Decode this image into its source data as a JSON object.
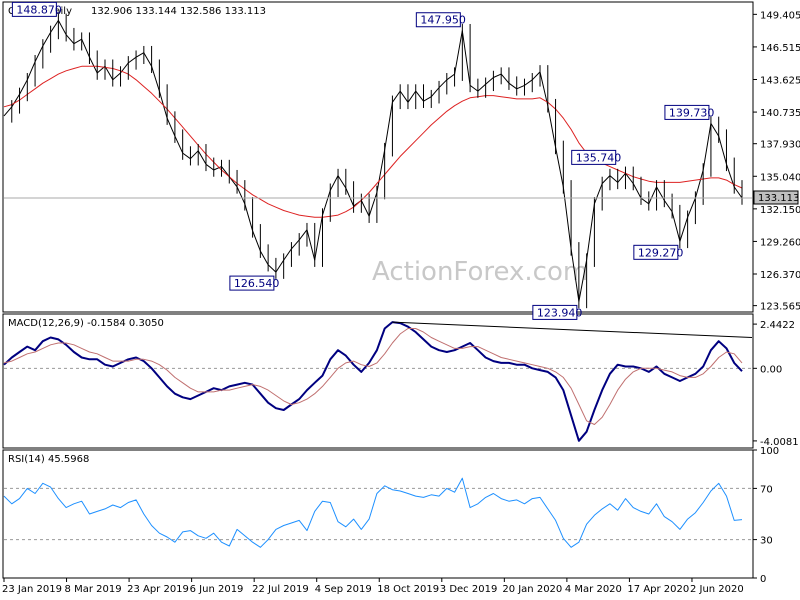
{
  "chart_data": [
    {
      "type": "line",
      "panel": "price",
      "header": "GBPJPY Daily",
      "ohlc_text": "132.906 133.144 132.586 133.113",
      "watermark": "ActionForex.com",
      "current_price_label": "133.113",
      "y_ticks": [
        "149.405",
        "146.515",
        "143.625",
        "140.735",
        "137.930",
        "135.040",
        "132.150",
        "129.260",
        "126.370",
        "123.565"
      ],
      "ylim": [
        123.0,
        150.5
      ],
      "x_ticks": [
        "23 Jan 2019",
        "8 Mar 2019",
        "23 Apr 2019",
        "6 Jun 2019",
        "22 Jul 2019",
        "4 Sep 2019",
        "18 Oct 2019",
        "3 Dec 2019",
        "20 Jan 2020",
        "4 Mar 2020",
        "17 Apr 2020",
        "2 Jun 2020"
      ],
      "annotations": [
        "148.870",
        "147.950",
        "126.540",
        "135.740",
        "139.730",
        "129.270",
        "123.940"
      ],
      "series": [
        {
          "name": "",
          "color": "#000000",
          "values": [
            140.4,
            141.2,
            142.3,
            143.6,
            145.2,
            146.6,
            147.8,
            148.87,
            147.6,
            146.8,
            147.2,
            145.6,
            144.2,
            144.8,
            143.6,
            144.2,
            145.1,
            145.6,
            146.0,
            144.8,
            142.6,
            140.2,
            138.6,
            137.1,
            136.6,
            137.3,
            136.1,
            135.6,
            135.9,
            135.0,
            134.1,
            132.6,
            130.2,
            128.4,
            127.2,
            126.54,
            127.6,
            128.6,
            129.4,
            130.3,
            127.6,
            131.6,
            133.8,
            135.1,
            134.0,
            132.4,
            132.9,
            131.5,
            133.6,
            137.4,
            141.6,
            142.6,
            141.6,
            142.6,
            141.7,
            142.1,
            142.9,
            143.6,
            144.1,
            147.95,
            143.1,
            142.6,
            143.2,
            143.8,
            144.1,
            143.3,
            142.8,
            143.1,
            143.6,
            144.3,
            141.3,
            137.6,
            134.1,
            128.6,
            123.94,
            127.6,
            132.6,
            134.4,
            135.1,
            134.5,
            135.3,
            134.4,
            133.1,
            132.6,
            134.1,
            132.9,
            131.9,
            129.27,
            131.4,
            133.1,
            135.6,
            139.73,
            138.6,
            136.1,
            134.1,
            133.113
          ]
        },
        {
          "name": "",
          "color": "#dd2222",
          "values": [
            141.2,
            141.4,
            141.8,
            142.3,
            142.8,
            143.3,
            143.7,
            144.1,
            144.4,
            144.6,
            144.8,
            144.8,
            144.8,
            144.7,
            144.6,
            144.4,
            144.1,
            143.6,
            143.0,
            142.4,
            141.7,
            141.0,
            140.2,
            139.4,
            138.6,
            137.8,
            137.0,
            136.3,
            135.6,
            135.0,
            134.4,
            133.9,
            133.4,
            133.0,
            132.6,
            132.3,
            132.0,
            131.8,
            131.6,
            131.5,
            131.4,
            131.4,
            131.5,
            131.6,
            131.9,
            132.3,
            132.9,
            133.6,
            134.4,
            135.2,
            136.0,
            136.8,
            137.5,
            138.2,
            138.9,
            139.6,
            140.2,
            140.8,
            141.3,
            141.7,
            142.0,
            142.1,
            142.2,
            142.2,
            142.1,
            142.0,
            141.9,
            141.9,
            141.9,
            142.0,
            141.6,
            141.0,
            140.2,
            139.2,
            138.0,
            137.1,
            136.6,
            136.2,
            135.9,
            135.6,
            135.3,
            135.0,
            134.8,
            134.6,
            134.5,
            134.5,
            134.5,
            134.5,
            134.6,
            134.7,
            134.8,
            134.9,
            134.9,
            134.7,
            134.3,
            134.0
          ]
        }
      ]
    },
    {
      "type": "line",
      "panel": "macd",
      "header": "MACD(12,26,9) -0.1584 0.3050",
      "y_ticks": [
        "2.4422",
        "0.00",
        "-4.0081"
      ],
      "ylim": [
        -4.4,
        3.0
      ],
      "series": [
        {
          "name": "",
          "color": "#000080",
          "values": [
            0.2,
            0.6,
            0.9,
            1.2,
            1.0,
            1.5,
            1.7,
            1.6,
            1.3,
            0.9,
            0.6,
            0.5,
            0.5,
            0.2,
            0.1,
            0.3,
            0.5,
            0.6,
            0.4,
            0.0,
            -0.5,
            -1.0,
            -1.4,
            -1.6,
            -1.7,
            -1.5,
            -1.3,
            -1.1,
            -1.2,
            -1.0,
            -0.9,
            -0.8,
            -0.9,
            -1.4,
            -1.9,
            -2.2,
            -2.3,
            -2.0,
            -1.7,
            -1.2,
            -0.8,
            -0.4,
            0.5,
            1.0,
            0.7,
            0.2,
            -0.2,
            0.3,
            1.0,
            2.2,
            2.55,
            2.5,
            2.3,
            2.0,
            1.6,
            1.2,
            1.0,
            0.9,
            1.0,
            1.2,
            1.4,
            1.0,
            0.6,
            0.4,
            0.3,
            0.3,
            0.2,
            0.2,
            0.0,
            -0.1,
            -0.2,
            -0.5,
            -1.2,
            -2.6,
            -4.0,
            -3.5,
            -2.3,
            -1.2,
            -0.3,
            0.2,
            0.1,
            0.1,
            0.0,
            -0.2,
            0.1,
            -0.3,
            -0.5,
            -0.7,
            -0.5,
            -0.3,
            0.1,
            1.0,
            1.5,
            1.1,
            0.3,
            -0.16
          ]
        },
        {
          "name": "",
          "color": "#c07070",
          "values": [
            0.3,
            0.4,
            0.6,
            0.8,
            0.9,
            1.1,
            1.3,
            1.4,
            1.4,
            1.3,
            1.1,
            0.9,
            0.8,
            0.6,
            0.4,
            0.4,
            0.4,
            0.5,
            0.5,
            0.4,
            0.2,
            -0.1,
            -0.5,
            -0.8,
            -1.1,
            -1.3,
            -1.3,
            -1.3,
            -1.2,
            -1.2,
            -1.1,
            -1.0,
            -0.9,
            -1.0,
            -1.2,
            -1.5,
            -1.8,
            -2.0,
            -1.9,
            -1.7,
            -1.4,
            -1.0,
            -0.5,
            0.0,
            0.3,
            0.4,
            0.2,
            0.1,
            0.3,
            0.8,
            1.4,
            1.9,
            2.2,
            2.2,
            2.0,
            1.7,
            1.5,
            1.3,
            1.1,
            1.1,
            1.2,
            1.2,
            1.0,
            0.8,
            0.6,
            0.5,
            0.4,
            0.3,
            0.2,
            0.1,
            0.0,
            -0.2,
            -0.5,
            -1.1,
            -2.0,
            -2.9,
            -3.1,
            -2.7,
            -2.0,
            -1.2,
            -0.6,
            -0.2,
            0.0,
            0.0,
            0.0,
            -0.1,
            -0.2,
            -0.4,
            -0.5,
            -0.5,
            -0.3,
            0.1,
            0.6,
            0.9,
            0.8,
            0.3
          ]
        }
      ]
    },
    {
      "type": "line",
      "panel": "rsi",
      "header": "RSI(14) 45.5968",
      "y_ticks": [
        "100",
        "70",
        "30",
        "0"
      ],
      "ylim": [
        0,
        100
      ],
      "series": [
        {
          "name": "",
          "color": "#1e90ff",
          "values": [
            64,
            58,
            62,
            70,
            66,
            74,
            71,
            62,
            55,
            58,
            60,
            50,
            52,
            54,
            57,
            55,
            59,
            61,
            50,
            41,
            35,
            32,
            28,
            36,
            37,
            33,
            31,
            35,
            28,
            25,
            38,
            33,
            28,
            24,
            30,
            38,
            41,
            43,
            45,
            37,
            52,
            60,
            59,
            44,
            40,
            46,
            38,
            46,
            66,
            72,
            69,
            68,
            66,
            64,
            63,
            65,
            64,
            70,
            67,
            78,
            55,
            58,
            63,
            66,
            62,
            60,
            61,
            58,
            62,
            63,
            54,
            45,
            31,
            24,
            28,
            42,
            49,
            54,
            58,
            53,
            62,
            55,
            52,
            50,
            58,
            48,
            44,
            38,
            46,
            51,
            59,
            68,
            74,
            64,
            45,
            45.6
          ]
        }
      ]
    }
  ]
}
